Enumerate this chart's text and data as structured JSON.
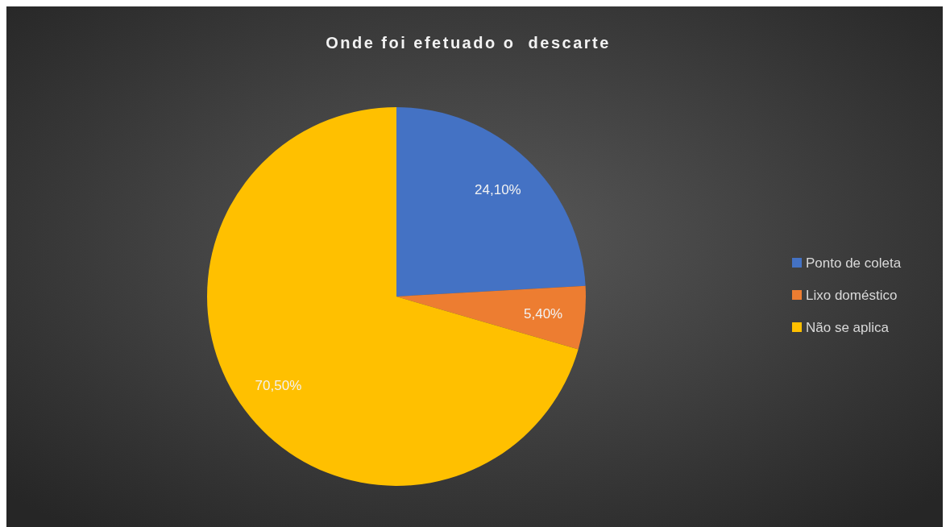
{
  "chart_data": {
    "type": "pie",
    "title": "Onde foi efetuado o  descarte",
    "categories": [
      "Ponto de coleta",
      "Lixo doméstico",
      "Não se aplica"
    ],
    "values": [
      24.1,
      5.4,
      70.5
    ],
    "colors": [
      "#4472c4",
      "#ed7d31",
      "#ffc000"
    ],
    "value_labels": [
      "24,10%",
      "5,40%",
      "70,50%"
    ],
    "legend": "right"
  }
}
